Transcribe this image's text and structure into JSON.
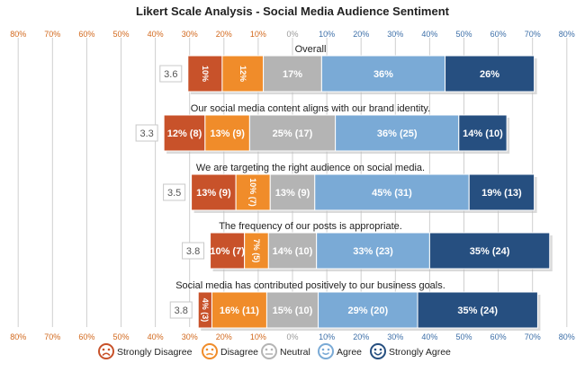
{
  "colors": {
    "strongly_disagree": "#c8522a",
    "disagree": "#f08c2a",
    "neutral": "#b4b4b4",
    "agree": "#7aaad6",
    "strongly_agree": "#264f80",
    "neg_tick": "#d2691e",
    "pos_tick": "#3d6fa8",
    "zero_tick": "#999999",
    "grid": "#cfcfcf",
    "label_box_border": "#c8c8c8",
    "score_text": "#555555"
  },
  "legend": [
    {
      "label": "Strongly Disagree",
      "color_key": "strongly_disagree",
      "icon": "sad-face-icon"
    },
    {
      "label": "Disagree",
      "color_key": "disagree",
      "icon": "slightly-sad-face-icon"
    },
    {
      "label": "Neutral",
      "color_key": "neutral",
      "icon": "neutral-face-icon"
    },
    {
      "label": "Agree",
      "color_key": "agree",
      "icon": "smile-face-icon"
    },
    {
      "label": "Strongly Agree",
      "color_key": "strongly_agree",
      "icon": "happy-face-icon"
    }
  ],
  "chart_data": {
    "type": "bar",
    "orientation": "horizontal",
    "stacked": "diverging",
    "title": "Likert Scale Analysis - Social Media Audience Sentiment",
    "x_ticks": [
      "80%",
      "70%",
      "60%",
      "50%",
      "40%",
      "30%",
      "20%",
      "10%",
      "0%",
      "10%",
      "20%",
      "30%",
      "40%",
      "50%",
      "60%",
      "70%",
      "80%"
    ],
    "xlim": [
      -80,
      80
    ],
    "grid": true,
    "legend_position": "bottom",
    "series_names": [
      "Strongly Disagree",
      "Disagree",
      "Neutral",
      "Agree",
      "Strongly Agree"
    ],
    "rows": [
      {
        "question": "Overall",
        "score": "3.6",
        "values": [
          10,
          12,
          17,
          36,
          26
        ],
        "labels": [
          "10%",
          "12%",
          "17%",
          "36%",
          "26%"
        ],
        "vertical": [
          true,
          true,
          false,
          false,
          false
        ]
      },
      {
        "question": "Our social media content aligns with our brand identity.",
        "score": "3.3",
        "values": [
          12,
          13,
          25,
          36,
          14
        ],
        "labels": [
          "12% (8)",
          "13% (9)",
          "25% (17)",
          "36% (25)",
          "14% (10)"
        ],
        "vertical": [
          false,
          false,
          false,
          false,
          false
        ]
      },
      {
        "question": "We are targeting the right audience on social media.",
        "score": "3.5",
        "values": [
          13,
          10,
          13,
          45,
          19
        ],
        "labels": [
          "13% (9)",
          "10% (7)",
          "13% (9)",
          "45% (31)",
          "19% (13)"
        ],
        "vertical": [
          false,
          true,
          false,
          false,
          false
        ]
      },
      {
        "question": "The frequency of our posts is appropriate.",
        "score": "3.8",
        "values": [
          10,
          7,
          14,
          33,
          35
        ],
        "labels": [
          "10% (7)",
          "7% (5)",
          "14% (10)",
          "33% (23)",
          "35% (24)"
        ],
        "vertical": [
          false,
          true,
          false,
          false,
          false
        ]
      },
      {
        "question": "Social media has contributed positively to our business goals.",
        "score": "3.8",
        "values": [
          4,
          16,
          15,
          29,
          35
        ],
        "labels": [
          "4% (3)",
          "16% (11)",
          "15% (10)",
          "29% (20)",
          "35% (24)"
        ],
        "vertical": [
          true,
          false,
          false,
          false,
          false
        ]
      }
    ]
  }
}
